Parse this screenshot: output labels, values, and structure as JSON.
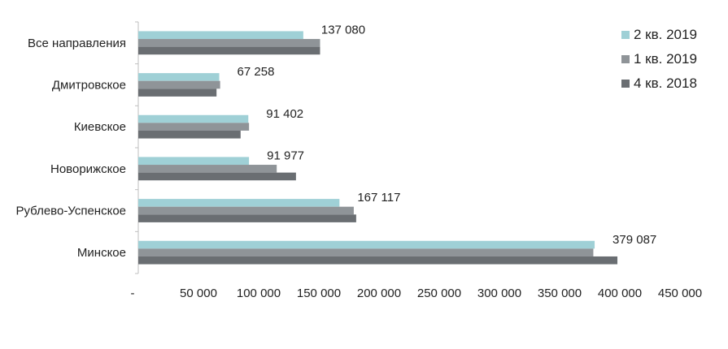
{
  "chart_data": {
    "type": "bar",
    "orientation": "horizontal",
    "categories": [
      "Все направления",
      "Дмитровское",
      "Киевское",
      "Новорижское",
      "Рублево-Успенское",
      "Минское"
    ],
    "series": [
      {
        "name": "2 кв. 2019",
        "color": "#9fd0d6",
        "values": [
          137080,
          67258,
          91402,
          91977,
          167117,
          379087
        ]
      },
      {
        "name": "1 кв. 2019",
        "color": "#8f9498",
        "values": [
          151000,
          68000,
          92000,
          115000,
          179000,
          378000
        ]
      },
      {
        "name": "4 кв. 2018",
        "color": "#6a6e72",
        "values": [
          151000,
          65000,
          85000,
          131000,
          181000,
          398000
        ]
      }
    ],
    "data_labels": [
      "137 080",
      "67 258",
      "91 402",
      "91 977",
      "167 117",
      "379 087"
    ],
    "x_ticks": [
      0,
      50000,
      100000,
      150000,
      200000,
      250000,
      300000,
      350000,
      400000,
      450000
    ],
    "x_tick_labels": [
      "-",
      "50 000",
      "100 000",
      "150 000",
      "200 000",
      "250 000",
      "300 000",
      "350 000",
      "400 000",
      "450 000"
    ],
    "xlim": [
      0,
      450000
    ],
    "grid": false,
    "legend_position": "top-right",
    "title": "",
    "xlabel": "",
    "ylabel": ""
  }
}
